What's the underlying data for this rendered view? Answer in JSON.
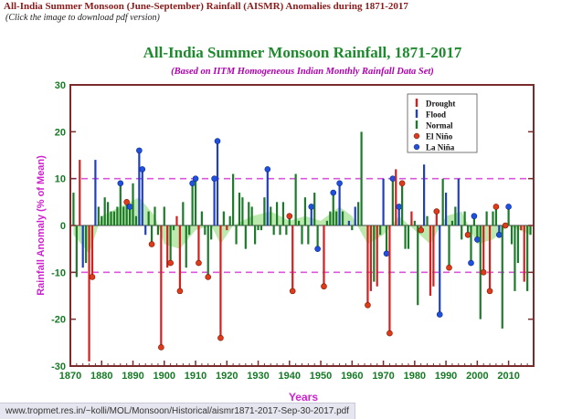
{
  "page": {
    "heading": "All-India Summer Monsoon (June-September) Rainfall (AISMR) Anomalies during 1871-2017",
    "subheading": "(Click the image to download pdf version)"
  },
  "status_bar": {
    "url": "www.tropmet.res.in/~kolli/MOL/Monsoon/Historical/aismr1871-2017-Sep-30-2017.pdf"
  },
  "colors": {
    "title": "#1e8a2e",
    "subtitle": "#b000b0",
    "axis_label": "#d020d0",
    "tick_label": "#157a24",
    "drought": "#d22020",
    "flood": "#1f3fbf",
    "normal": "#1c7a2a",
    "el_nino_marker": "#e03a1a",
    "la_nina_marker": "#2050e0",
    "smooth_fill": "#9fe08c",
    "sd_line": "#dd55dd"
  },
  "chart_data": {
    "type": "bar",
    "title": "All-India Summer Monsoon Rainfall, 1871-2017",
    "subtitle": "(Based on IITM Homogeneous Indian Monthly Rainfall Data Set)",
    "xlabel": "Years",
    "ylabel": "Rainfall Anomaly (% of Mean)",
    "xlim": [
      1870,
      2018
    ],
    "ylim": [
      -30,
      30
    ],
    "xticks": [
      1870,
      1880,
      1890,
      1900,
      1910,
      1920,
      1930,
      1940,
      1950,
      1960,
      1970,
      1980,
      1990,
      2000,
      2010
    ],
    "yticks": [
      -30,
      -20,
      -10,
      0,
      10,
      20,
      30
    ],
    "std_dev_lines": [
      10,
      -10
    ],
    "grid": false,
    "legend": {
      "placement": "top-right",
      "entries": [
        {
          "label": "Drought",
          "kind": "bar",
          "color": "#d22020"
        },
        {
          "label": "Flood",
          "kind": "bar",
          "color": "#1f3fbf"
        },
        {
          "label": "Normal",
          "kind": "bar",
          "color": "#1c7a2a"
        },
        {
          "label": "El Niño",
          "kind": "circle",
          "color": "#e03a1a"
        },
        {
          "label": "La Niña",
          "kind": "circle",
          "color": "#2050e0"
        }
      ]
    },
    "years": [
      1871,
      1872,
      1873,
      1874,
      1875,
      1876,
      1877,
      1878,
      1879,
      1880,
      1881,
      1882,
      1883,
      1884,
      1885,
      1886,
      1887,
      1888,
      1889,
      1890,
      1891,
      1892,
      1893,
      1894,
      1895,
      1896,
      1897,
      1898,
      1899,
      1900,
      1901,
      1902,
      1903,
      1904,
      1905,
      1906,
      1907,
      1908,
      1909,
      1910,
      1911,
      1912,
      1913,
      1914,
      1915,
      1916,
      1917,
      1918,
      1919,
      1920,
      1921,
      1922,
      1923,
      1924,
      1925,
      1926,
      1927,
      1928,
      1929,
      1930,
      1931,
      1932,
      1933,
      1934,
      1935,
      1936,
      1937,
      1938,
      1939,
      1940,
      1941,
      1942,
      1943,
      1944,
      1945,
      1946,
      1947,
      1948,
      1949,
      1950,
      1951,
      1952,
      1953,
      1954,
      1955,
      1956,
      1957,
      1958,
      1959,
      1960,
      1961,
      1962,
      1963,
      1964,
      1965,
      1966,
      1967,
      1968,
      1969,
      1970,
      1971,
      1972,
      1973,
      1974,
      1975,
      1976,
      1977,
      1978,
      1979,
      1980,
      1981,
      1982,
      1983,
      1984,
      1985,
      1986,
      1987,
      1988,
      1989,
      1990,
      1991,
      1992,
      1993,
      1994,
      1995,
      1996,
      1997,
      1998,
      1999,
      2000,
      2001,
      2002,
      2003,
      2004,
      2005,
      2006,
      2007,
      2008,
      2009,
      2010,
      2011,
      2012,
      2013,
      2014,
      2015,
      2016,
      2017
    ],
    "anomalies": [
      7,
      -11,
      14,
      -9,
      -8,
      -29,
      -11,
      14,
      4,
      2,
      6,
      5,
      3,
      3,
      4,
      9,
      4,
      5,
      4,
      9,
      2,
      16,
      12,
      -2,
      3,
      -4,
      4,
      -2,
      -26,
      4,
      -9,
      -8,
      -1,
      2,
      -14,
      5,
      -9,
      -2,
      9,
      10,
      -8,
      3,
      -2,
      -11,
      -3,
      10,
      18,
      -24,
      3,
      -1,
      2,
      11,
      -4,
      7,
      6,
      -5,
      5,
      4,
      -4,
      -1,
      -1,
      6,
      12,
      4,
      -2,
      5,
      -2,
      5,
      -2,
      2,
      -14,
      11,
      1,
      -4,
      6,
      -4,
      4,
      7,
      -5,
      0,
      -13,
      1,
      3,
      7,
      3,
      9,
      3,
      0,
      1,
      -1,
      4,
      5,
      20,
      0,
      -17,
      -14,
      -12,
      -13,
      -2,
      10,
      -6,
      -23,
      10,
      12,
      4,
      9,
      -5,
      -5,
      3,
      1,
      -17,
      -1,
      13,
      2,
      -15,
      -13,
      3,
      -19,
      10,
      7,
      -9,
      1,
      4,
      10,
      -3,
      3,
      -2,
      -8,
      2,
      -3,
      -20,
      -10,
      3,
      -14,
      3,
      4,
      -2,
      -22,
      0,
      4,
      -4,
      -14,
      -8,
      -1,
      -12,
      -14,
      -2
    ],
    "categories": {
      "drought": [
        1873,
        1876,
        1877,
        1899,
        1901,
        1904,
        1905,
        1911,
        1918,
        1920,
        1941,
        1951,
        1965,
        1966,
        1968,
        1972,
        1974,
        1979,
        1982,
        1985,
        1986,
        1987,
        2002,
        2004,
        2009,
        2014,
        2015
      ],
      "flood": [
        1874,
        1878,
        1892,
        1893,
        1894,
        1916,
        1917,
        1933,
        1947,
        1956,
        1959,
        1961,
        1970,
        1975,
        1983,
        1988,
        1990,
        1994,
        2007
      ],
      "el_nino": [
        1877,
        1888,
        1896,
        1899,
        1902,
        1905,
        1911,
        1914,
        1918,
        1940,
        1941,
        1951,
        1965,
        1972,
        1976,
        1982,
        1987,
        1991,
        1997,
        2002,
        2004,
        2006,
        2009
      ],
      "la_nina": [
        1886,
        1889,
        1892,
        1893,
        1909,
        1910,
        1916,
        1917,
        1933,
        1947,
        1949,
        1954,
        1956,
        1971,
        1973,
        1975,
        1988,
        1998,
        1999,
        2000,
        2007,
        2010
      ]
    },
    "smoothed_trend": [
      [
        1871,
        -2
      ],
      [
        1876,
        -6
      ],
      [
        1880,
        2
      ],
      [
        1886,
        4
      ],
      [
        1892,
        6
      ],
      [
        1897,
        2
      ],
      [
        1900,
        -4
      ],
      [
        1905,
        -5
      ],
      [
        1910,
        -1
      ],
      [
        1915,
        0
      ],
      [
        1918,
        -4
      ],
      [
        1922,
        0
      ],
      [
        1928,
        2
      ],
      [
        1934,
        3
      ],
      [
        1940,
        1
      ],
      [
        1945,
        2
      ],
      [
        1950,
        1
      ],
      [
        1956,
        4
      ],
      [
        1960,
        2
      ],
      [
        1965,
        -4
      ],
      [
        1970,
        -2
      ],
      [
        1975,
        2
      ],
      [
        1980,
        -1
      ],
      [
        1985,
        -4
      ],
      [
        1990,
        2
      ],
      [
        1995,
        3
      ],
      [
        2000,
        -4
      ],
      [
        2005,
        -3
      ],
      [
        2010,
        0
      ],
      [
        2017,
        -2
      ]
    ]
  }
}
